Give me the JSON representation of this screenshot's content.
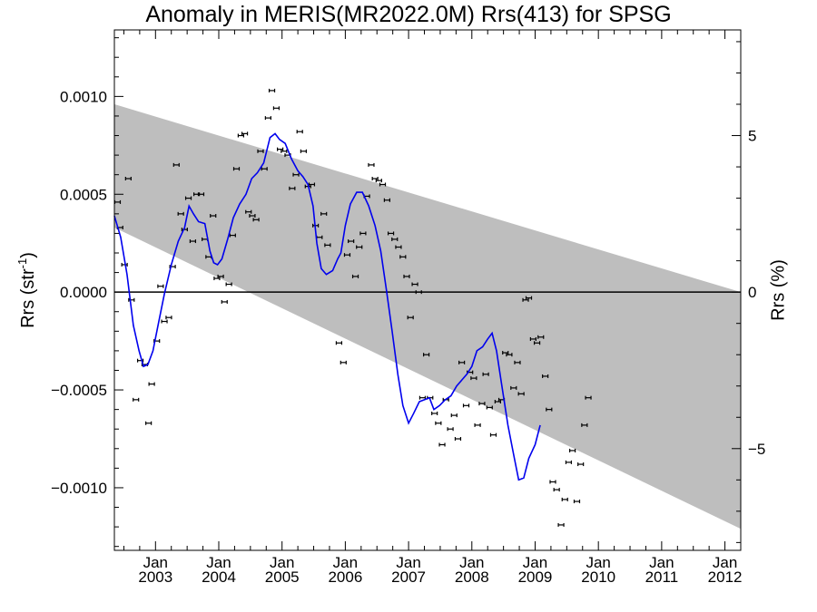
{
  "chart_data": {
    "type": "scatter",
    "title": "Anomaly in MERIS(MR2022.0M) Rrs(413) for SPSG",
    "ylabel": "Rrs (str",
    "ylabel_sup": "-1",
    "ylabel_close": ")",
    "ylabel_right": "Rrs (%)",
    "xlim": [
      2002.35,
      2012.25
    ],
    "ylim": [
      -0.00132,
      0.00134
    ],
    "y2lim": [
      -8.25,
      8.375
    ],
    "yticks": [
      {
        "value": 0.001,
        "label": "0.0010"
      },
      {
        "value": 0.0005,
        "label": "0.0005"
      },
      {
        "value": 0.0,
        "label": "0.0000"
      },
      {
        "value": -0.0005,
        "label": "−0.0005"
      },
      {
        "value": -0.001,
        "label": "−0.0010"
      }
    ],
    "y2ticks": [
      {
        "value": 5,
        "label": "5"
      },
      {
        "value": 0,
        "label": "0"
      },
      {
        "value": -5,
        "label": "−5"
      }
    ],
    "xticks": [
      {
        "value": 2003.0,
        "month": "Jan",
        "year": "2003"
      },
      {
        "value": 2004.0,
        "month": "Jan",
        "year": "2004"
      },
      {
        "value": 2005.0,
        "month": "Jan",
        "year": "2005"
      },
      {
        "value": 2006.0,
        "month": "Jan",
        "year": "2006"
      },
      {
        "value": 2007.0,
        "month": "Jan",
        "year": "2007"
      },
      {
        "value": 2008.0,
        "month": "Jan",
        "year": "2008"
      },
      {
        "value": 2009.0,
        "month": "Jan",
        "year": "2009"
      },
      {
        "value": 2010.0,
        "month": "Jan",
        "year": "2010"
      },
      {
        "value": 2011.0,
        "month": "Jan",
        "year": "2011"
      },
      {
        "value": 2012.0,
        "month": "Jan",
        "year": "2012"
      }
    ],
    "band": {
      "upper": [
        [
          2002.35,
          0.00096
        ],
        [
          2012.25,
          0.0
        ]
      ],
      "lower": [
        [
          2002.35,
          0.00033
        ],
        [
          2012.25,
          -0.00121
        ]
      ],
      "color": "#bebebe"
    },
    "zero_line": 0.0,
    "series": [
      {
        "kind": "points_with_error_bars",
        "color": "#000000",
        "points": [
          [
            2002.4,
            0.00046
          ],
          [
            2002.44,
            0.00033
          ],
          [
            2002.51,
            0.00014
          ],
          [
            2002.57,
            0.00058
          ],
          [
            2002.62,
            -4e-05
          ],
          [
            2002.69,
            -0.00055
          ],
          [
            2002.76,
            -0.00035
          ],
          [
            2002.83,
            -0.00037
          ],
          [
            2002.89,
            -0.00067
          ],
          [
            2002.94,
            -0.00047
          ],
          [
            2003.02,
            -0.00025
          ],
          [
            2003.08,
            3e-05
          ],
          [
            2003.14,
            -0.00015
          ],
          [
            2003.21,
            -0.00013
          ],
          [
            2003.27,
            0.00013
          ],
          [
            2003.33,
            0.00065
          ],
          [
            2003.4,
            0.0004
          ],
          [
            2003.46,
            0.00032
          ],
          [
            2003.52,
            0.00048
          ],
          [
            2003.59,
            0.00026
          ],
          [
            2003.65,
            0.0005
          ],
          [
            2003.72,
            0.0005
          ],
          [
            2003.78,
            0.00027
          ],
          [
            2003.84,
            0.00018
          ],
          [
            2003.91,
            0.00039
          ],
          [
            2003.97,
            7e-05
          ],
          [
            2004.03,
            8e-05
          ],
          [
            2004.09,
            -5e-05
          ],
          [
            2004.16,
            4e-05
          ],
          [
            2004.22,
            0.00029
          ],
          [
            2004.28,
            0.00063
          ],
          [
            2004.35,
            0.0008
          ],
          [
            2004.41,
            0.00081
          ],
          [
            2004.47,
            0.00041
          ],
          [
            2004.53,
            0.00039
          ],
          [
            2004.59,
            0.00037
          ],
          [
            2004.66,
            0.00072
          ],
          [
            2004.72,
            0.00063
          ],
          [
            2004.78,
            0.00089
          ],
          [
            2004.84,
            0.00103
          ],
          [
            2004.91,
            0.00094
          ],
          [
            2004.97,
            0.00073
          ],
          [
            2005.03,
            0.00072
          ],
          [
            2005.09,
            0.0007
          ],
          [
            2005.16,
            0.00053
          ],
          [
            2005.22,
            0.0006
          ],
          [
            2005.28,
            0.00082
          ],
          [
            2005.34,
            0.00072
          ],
          [
            2005.41,
            0.00054
          ],
          [
            2005.47,
            0.00055
          ],
          [
            2005.53,
            0.00034
          ],
          [
            2005.59,
            0.00028
          ],
          [
            2005.66,
            0.0004
          ],
          [
            2005.72,
            0.00024
          ],
          [
            2005.9,
            -0.00026
          ],
          [
            2005.97,
            -0.00036
          ],
          [
            2006.03,
            0.00019
          ],
          [
            2006.09,
            0.00026
          ],
          [
            2006.16,
            8e-05
          ],
          [
            2006.22,
            0.00023
          ],
          [
            2006.28,
            0.0003
          ],
          [
            2006.34,
            0.00049
          ],
          [
            2006.41,
            0.00065
          ],
          [
            2006.47,
            0.00058
          ],
          [
            2006.53,
            0.00057
          ],
          [
            2006.59,
            0.00055
          ],
          [
            2006.66,
            0.00047
          ],
          [
            2006.72,
            0.0003
          ],
          [
            2006.78,
            0.00027
          ],
          [
            2006.84,
            0.00023
          ],
          [
            2006.91,
            0.00018
          ],
          [
            2006.97,
            8e-05
          ],
          [
            2007.03,
            -0.00013
          ],
          [
            2007.1,
            4e-05
          ],
          [
            2007.16,
            0.0
          ],
          [
            2007.22,
            -0.00054
          ],
          [
            2007.28,
            -0.00032
          ],
          [
            2007.34,
            -0.00054
          ],
          [
            2007.41,
            -0.00062
          ],
          [
            2007.47,
            -0.00067
          ],
          [
            2007.53,
            -0.00078
          ],
          [
            2007.59,
            -0.00055
          ],
          [
            2007.66,
            -0.0007
          ],
          [
            2007.72,
            -0.00063
          ],
          [
            2007.78,
            -0.00075
          ],
          [
            2007.84,
            -0.00036
          ],
          [
            2007.91,
            -0.00058
          ],
          [
            2007.97,
            -0.00041
          ],
          [
            2008.03,
            -0.00044
          ],
          [
            2008.09,
            -0.00068
          ],
          [
            2008.16,
            -0.00057
          ],
          [
            2008.22,
            -0.00042
          ],
          [
            2008.28,
            -0.00059
          ],
          [
            2008.34,
            -0.00073
          ],
          [
            2008.41,
            -0.00056
          ],
          [
            2008.47,
            -0.00055
          ],
          [
            2008.53,
            -0.00031
          ],
          [
            2008.59,
            -0.00032
          ],
          [
            2008.66,
            -0.00049
          ],
          [
            2008.72,
            -0.00036
          ],
          [
            2008.78,
            -0.00052
          ],
          [
            2008.85,
            -4e-05
          ],
          [
            2008.9,
            -3e-05
          ],
          [
            2008.97,
            -0.00024
          ],
          [
            2009.03,
            -0.00026
          ],
          [
            2009.09,
            -0.00023
          ],
          [
            2009.16,
            -0.00043
          ],
          [
            2009.22,
            -0.0006
          ],
          [
            2009.28,
            -0.00097
          ],
          [
            2009.34,
            -0.00101
          ],
          [
            2009.41,
            -0.00119
          ],
          [
            2009.47,
            -0.00106
          ],
          [
            2009.53,
            -0.00087
          ],
          [
            2009.59,
            -0.00081
          ],
          [
            2009.66,
            -0.00107
          ],
          [
            2009.72,
            -0.00088
          ],
          [
            2009.78,
            -0.00068
          ],
          [
            2009.84,
            -0.00054
          ]
        ]
      },
      {
        "kind": "line",
        "color": "#0000ee",
        "points": [
          [
            2002.35,
            0.00039
          ],
          [
            2002.45,
            0.00028
          ],
          [
            2002.55,
            9e-05
          ],
          [
            2002.65,
            -0.00017
          ],
          [
            2002.74,
            -0.0003
          ],
          [
            2002.81,
            -0.00038
          ],
          [
            2002.88,
            -0.00037
          ],
          [
            2002.96,
            -0.0003
          ],
          [
            2003.04,
            -0.00017
          ],
          [
            2003.14,
            -1e-05
          ],
          [
            2003.25,
            0.00014
          ],
          [
            2003.36,
            0.00026
          ],
          [
            2003.46,
            0.00033
          ],
          [
            2003.53,
            0.00044
          ],
          [
            2003.6,
            0.0004
          ],
          [
            2003.68,
            0.00036
          ],
          [
            2003.78,
            0.00035
          ],
          [
            2003.86,
            0.00021
          ],
          [
            2003.92,
            0.00015
          ],
          [
            2003.98,
            0.00014
          ],
          [
            2004.05,
            0.00017
          ],
          [
            2004.14,
            0.00027
          ],
          [
            2004.23,
            0.00038
          ],
          [
            2004.33,
            0.00045
          ],
          [
            2004.43,
            0.0005
          ],
          [
            2004.52,
            0.00058
          ],
          [
            2004.61,
            0.00061
          ],
          [
            2004.71,
            0.00066
          ],
          [
            2004.81,
            0.00079
          ],
          [
            2004.89,
            0.00081
          ],
          [
            2004.96,
            0.00078
          ],
          [
            2005.05,
            0.00076
          ],
          [
            2005.15,
            0.00068
          ],
          [
            2005.25,
            0.00062
          ],
          [
            2005.33,
            0.00059
          ],
          [
            2005.41,
            0.00055
          ],
          [
            2005.49,
            0.00044
          ],
          [
            2005.55,
            0.00025
          ],
          [
            2005.62,
            0.00012
          ],
          [
            2005.7,
            9e-05
          ],
          [
            2005.8,
            0.00011
          ],
          [
            2005.88,
            0.00017
          ],
          [
            2005.93,
            0.0002
          ],
          [
            2006.0,
            0.00034
          ],
          [
            2006.08,
            0.00045
          ],
          [
            2006.18,
            0.00051
          ],
          [
            2006.27,
            0.00051
          ],
          [
            2006.37,
            0.00044
          ],
          [
            2006.47,
            0.00034
          ],
          [
            2006.56,
            0.00021
          ],
          [
            2006.65,
            1e-05
          ],
          [
            2006.74,
            -0.0002
          ],
          [
            2006.83,
            -0.00042
          ],
          [
            2006.91,
            -0.00058
          ],
          [
            2007.0,
            -0.00067
          ],
          [
            2007.08,
            -0.00062
          ],
          [
            2007.17,
            -0.00056
          ],
          [
            2007.25,
            -0.00055
          ],
          [
            2007.33,
            -0.00054
          ],
          [
            2007.4,
            -0.0006
          ],
          [
            2007.49,
            -0.00058
          ],
          [
            2007.58,
            -0.00055
          ],
          [
            2007.67,
            -0.00053
          ],
          [
            2007.76,
            -0.00048
          ],
          [
            2007.84,
            -0.00045
          ],
          [
            2007.92,
            -0.00042
          ],
          [
            2008.0,
            -0.00038
          ],
          [
            2008.08,
            -0.0003
          ],
          [
            2008.17,
            -0.00028
          ],
          [
            2008.25,
            -0.00024
          ],
          [
            2008.32,
            -0.00021
          ],
          [
            2008.39,
            -0.0003
          ],
          [
            2008.47,
            -0.00047
          ],
          [
            2008.57,
            -0.00068
          ],
          [
            2008.66,
            -0.00083
          ],
          [
            2008.74,
            -0.00096
          ],
          [
            2008.82,
            -0.00095
          ],
          [
            2008.9,
            -0.00085
          ],
          [
            2009.0,
            -0.00078
          ],
          [
            2009.08,
            -0.00068
          ]
        ]
      }
    ]
  }
}
